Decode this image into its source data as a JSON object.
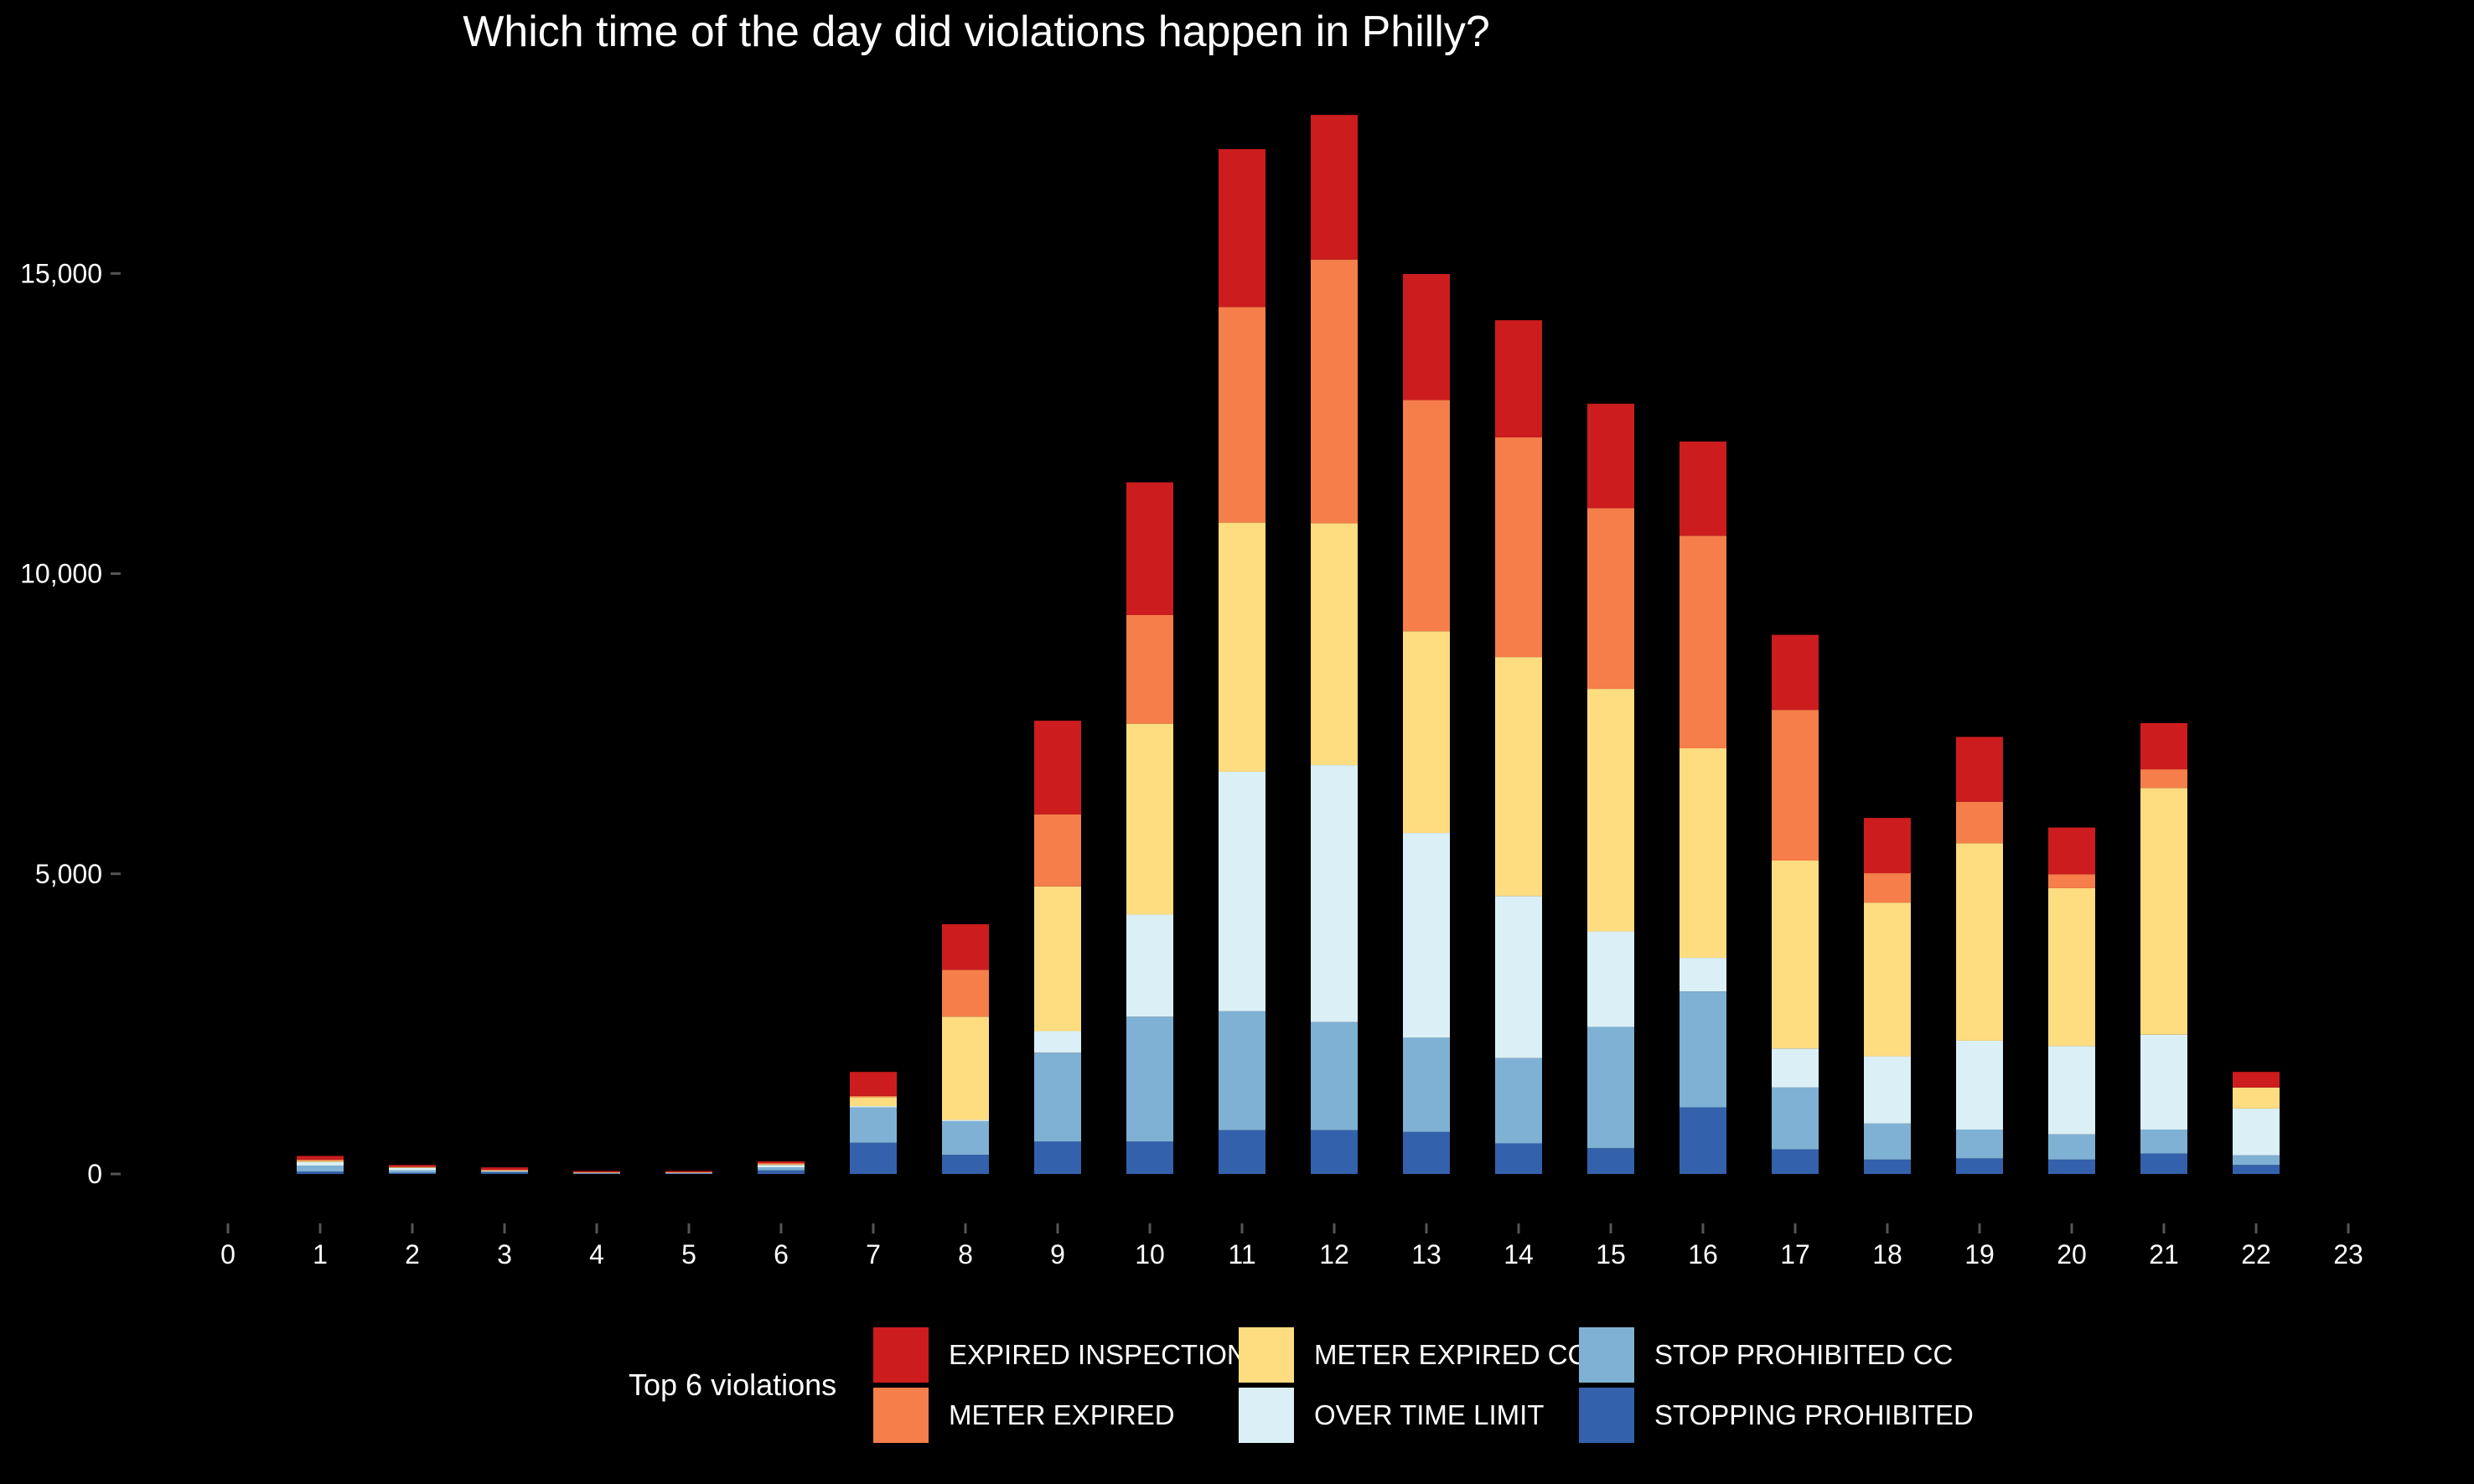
{
  "chart_data": {
    "type": "bar",
    "stacked": true,
    "title": "Which time of the day did violations happen in Philly?",
    "xlabel": "",
    "ylabel": "",
    "x": [
      0,
      1,
      2,
      3,
      4,
      5,
      6,
      7,
      8,
      9,
      10,
      11,
      12,
      13,
      14,
      15,
      16,
      17,
      18,
      19,
      20,
      21,
      22,
      23
    ],
    "x_tick_labels": [
      "0",
      "1",
      "2",
      "3",
      "4",
      "5",
      "6",
      "7",
      "8",
      "9",
      "10",
      "11",
      "12",
      "13",
      "14",
      "15",
      "16",
      "17",
      "18",
      "19",
      "20",
      "21",
      "22",
      "23"
    ],
    "ylim": [
      0,
      17600
    ],
    "y_ticks": [
      0,
      5000,
      10000,
      15000
    ],
    "y_tick_labels": [
      "0",
      "5,000",
      "10,000",
      "15,000"
    ],
    "grid": false,
    "legend": {
      "title": "Top 6 violations",
      "placement": "bottom"
    },
    "series": [
      {
        "name": "STOPPING PROHIBITED",
        "color": "#3461AB",
        "values": [
          0,
          40,
          20,
          30,
          10,
          10,
          60,
          520,
          320,
          540,
          540,
          730,
          730,
          700,
          510,
          430,
          1110,
          410,
          240,
          260,
          240,
          340,
          150,
          0
        ]
      },
      {
        "name": "STOP PROHIBITED CC",
        "color": "#7FB1D4",
        "values": [
          0,
          100,
          40,
          10,
          5,
          5,
          50,
          590,
          560,
          1480,
          2080,
          1980,
          1800,
          1570,
          1420,
          2020,
          1930,
          1030,
          600,
          480,
          420,
          400,
          160,
          0
        ]
      },
      {
        "name": "OVER TIME LIMIT",
        "color": "#DAF0F6",
        "values": [
          0,
          60,
          40,
          10,
          5,
          5,
          40,
          20,
          20,
          360,
          1700,
          3990,
          4280,
          3410,
          2700,
          1590,
          560,
          650,
          1120,
          1480,
          1470,
          1580,
          780,
          0
        ]
      },
      {
        "name": "METER EXPIRED CC",
        "color": "#FEDC80",
        "values": [
          0,
          20,
          10,
          10,
          5,
          5,
          10,
          150,
          1720,
          2410,
          3180,
          4150,
          4030,
          3360,
          3980,
          4040,
          3490,
          3130,
          2560,
          3290,
          2630,
          4110,
          350,
          0
        ]
      },
      {
        "name": "METER EXPIRED",
        "color": "#F57E4A",
        "values": [
          0,
          20,
          10,
          10,
          5,
          5,
          20,
          20,
          780,
          1200,
          1810,
          3590,
          4390,
          3850,
          3660,
          3010,
          3540,
          2510,
          490,
          690,
          230,
          310,
          0,
          0
        ]
      },
      {
        "name": "EXPIRED INSPECTION",
        "color": "#CC1C1E",
        "values": [
          0,
          60,
          30,
          40,
          20,
          20,
          30,
          400,
          760,
          1560,
          2210,
          2630,
          2410,
          2100,
          1950,
          1740,
          1570,
          1250,
          920,
          1080,
          780,
          770,
          260,
          0
        ]
      }
    ]
  }
}
